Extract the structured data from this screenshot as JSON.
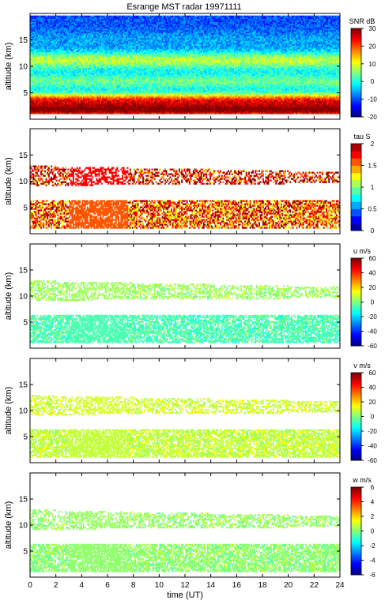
{
  "figure_title": "Esrange MST radar 19971111",
  "chart_data": [
    {
      "type": "heatmap",
      "title": "Esrange MST radar 19971111",
      "quantity": "SNR dB",
      "ylabel": "altitude (km)",
      "xlabel": "",
      "xlim": [
        0,
        24
      ],
      "ylim": [
        0,
        20
      ],
      "x_ticks": [
        0,
        2,
        4,
        6,
        8,
        10,
        12,
        14,
        16,
        18,
        20,
        22,
        24
      ],
      "y_ticks": [
        5,
        10,
        15
      ],
      "colorbar_label": "SNR dB",
      "colorbar_range": [
        -20,
        30
      ],
      "colorbar_ticks": [
        -20,
        -10,
        0,
        10,
        20,
        30
      ],
      "colormap": "jet",
      "gap_interval_hours": [
        3,
        7.5
      ],
      "layers": [
        {
          "alt_km": 1.5,
          "value": 22
        },
        {
          "alt_km": 3.5,
          "value": 14
        },
        {
          "alt_km": 7,
          "value": -2
        },
        {
          "alt_km": 11,
          "value": 2
        },
        {
          "alt_km": 15,
          "value": -12
        }
      ]
    },
    {
      "type": "heatmap",
      "quantity": "tau S",
      "ylabel": "altitude (km)",
      "xlabel": "",
      "xlim": [
        0,
        24
      ],
      "ylim": [
        0,
        20
      ],
      "x_ticks": [
        0,
        2,
        4,
        6,
        8,
        10,
        12,
        14,
        16,
        18,
        20,
        22,
        24
      ],
      "y_ticks": [
        5,
        10,
        15
      ],
      "colorbar_label": "tau S",
      "colorbar_range": [
        0,
        2
      ],
      "colorbar_ticks": [
        0,
        0.5,
        1,
        1.5,
        2
      ],
      "colormap": "jet-stepped",
      "layers": [
        {
          "alt_km": 3.5,
          "value": 1.6
        },
        {
          "alt_km": 11,
          "value": 1.8
        }
      ]
    },
    {
      "type": "heatmap",
      "quantity": "u m/s",
      "ylabel": "altitude (km)",
      "xlabel": "",
      "xlim": [
        0,
        24
      ],
      "ylim": [
        0,
        20
      ],
      "x_ticks": [
        0,
        2,
        4,
        6,
        8,
        10,
        12,
        14,
        16,
        18,
        20,
        22,
        24
      ],
      "y_ticks": [
        5,
        10,
        15
      ],
      "colorbar_label": "u m/s",
      "colorbar_range": [
        -60,
        60
      ],
      "colorbar_ticks": [
        -60,
        -40,
        -20,
        0,
        20,
        40,
        60
      ],
      "colormap": "jet",
      "layers": [
        {
          "alt_km": 3.5,
          "value": -6
        },
        {
          "alt_km": 11,
          "value": 4
        }
      ]
    },
    {
      "type": "heatmap",
      "quantity": "v m/s",
      "ylabel": "altitude (km)",
      "xlabel": "",
      "xlim": [
        0,
        24
      ],
      "ylim": [
        0,
        20
      ],
      "x_ticks": [
        0,
        2,
        4,
        6,
        8,
        10,
        12,
        14,
        16,
        18,
        20,
        22,
        24
      ],
      "y_ticks": [
        5,
        10,
        15
      ],
      "colorbar_label": "v m/s",
      "colorbar_range": [
        -60,
        60
      ],
      "colorbar_ticks": [
        -60,
        -40,
        -20,
        0,
        20,
        40,
        60
      ],
      "colormap": "jet",
      "layers": [
        {
          "alt_km": 3.5,
          "value": 8
        },
        {
          "alt_km": 11,
          "value": 10
        }
      ]
    },
    {
      "type": "heatmap",
      "quantity": "w m/s",
      "ylabel": "altitude (km)",
      "xlabel": "time (UT)",
      "xlim": [
        0,
        24
      ],
      "ylim": [
        0,
        20
      ],
      "x_ticks": [
        0,
        2,
        4,
        6,
        8,
        10,
        12,
        14,
        16,
        18,
        20,
        22,
        24
      ],
      "y_ticks": [
        5,
        10,
        15
      ],
      "colorbar_label": "w m/s",
      "colorbar_range": [
        -6,
        6
      ],
      "colorbar_ticks": [
        -6,
        -4,
        -2,
        0,
        2,
        4,
        6
      ],
      "colormap": "jet",
      "layers": [
        {
          "alt_km": 3.5,
          "value": 0.2
        },
        {
          "alt_km": 11,
          "value": 0.3
        }
      ]
    }
  ]
}
